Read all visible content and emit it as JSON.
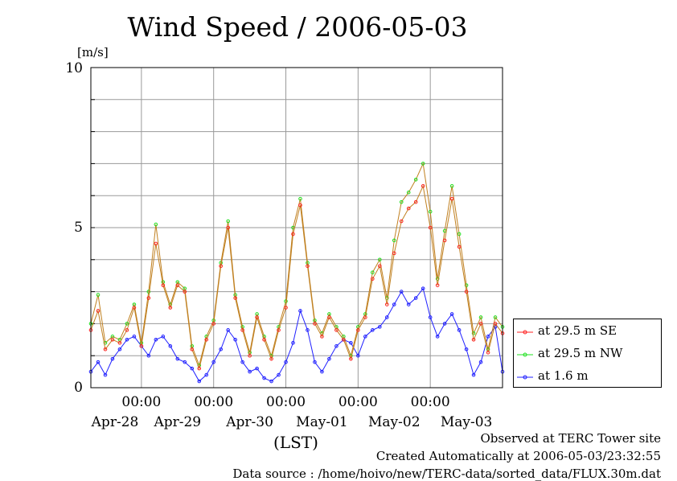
{
  "title": "Wind Speed / 2006-05-03",
  "unit_label": "[m/s]",
  "time_zone_label": "(LST)",
  "footer": {
    "observed": "Observed at TERC Tower site",
    "created": "Created Automatically at 2006-05-03/23:32:55",
    "source": "Data source : /home/hoivo/new/TERC-data/sorted_data/FLUX.30m.dat"
  },
  "colors": {
    "se": "#ff2020",
    "nw": "#20e020",
    "low": "#2020ff",
    "connector": "#c08020"
  },
  "chart_data": {
    "type": "line",
    "title": "Wind Speed / 2006-05-03",
    "ylabel": "[m/s]",
    "xlabel": "(LST)",
    "ylim": [
      0,
      10
    ],
    "y_ticks": [
      "0",
      "5",
      "10"
    ],
    "x_tick_labels": [
      "00:00",
      "00:00",
      "00:00",
      "00:00",
      "00:00"
    ],
    "date_labels": [
      "Apr-28",
      "Apr-29",
      "Apr-30",
      "May-01",
      "May-02",
      "May-03"
    ],
    "grid": true,
    "legend_position": "right-bottom",
    "x_unit": "day index (0 = 2006-04-27 00:00)",
    "x_range": [
      0.3,
      6.0
    ],
    "series": [
      {
        "name": "at 29.5 m SE",
        "color": "#ff2020",
        "x": [
          0.3,
          0.4,
          0.5,
          0.6,
          0.7,
          0.8,
          0.9,
          1.0,
          1.1,
          1.2,
          1.3,
          1.4,
          1.5,
          1.6,
          1.7,
          1.8,
          1.9,
          2.0,
          2.1,
          2.2,
          2.3,
          2.4,
          2.5,
          2.6,
          2.7,
          2.8,
          2.9,
          3.0,
          3.1,
          3.2,
          3.3,
          3.4,
          3.5,
          3.6,
          3.7,
          3.8,
          3.9,
          4.0,
          4.1,
          4.2,
          4.3,
          4.4,
          4.5,
          4.6,
          4.7,
          4.8,
          4.9,
          5.0,
          5.1,
          5.2,
          5.3,
          5.4,
          5.5,
          5.6,
          5.7,
          5.8,
          5.9,
          6.0
        ],
        "y": [
          1.8,
          2.4,
          1.2,
          1.5,
          1.4,
          1.8,
          2.5,
          1.3,
          2.8,
          4.5,
          3.2,
          2.5,
          3.2,
          3.0,
          1.2,
          0.6,
          1.5,
          2.0,
          3.8,
          5.0,
          2.8,
          1.8,
          1.0,
          2.2,
          1.5,
          0.9,
          1.8,
          2.5,
          4.8,
          5.7,
          3.8,
          2.0,
          1.6,
          2.2,
          1.8,
          1.5,
          0.9,
          1.8,
          2.2,
          3.4,
          3.8,
          2.6,
          4.2,
          5.2,
          5.6,
          5.8,
          6.3,
          5.0,
          3.2,
          4.6,
          5.9,
          4.4,
          3.0,
          1.5,
          2.0,
          1.1,
          2.0,
          1.7
        ]
      },
      {
        "name": "at 29.5 m NW",
        "color": "#20e020",
        "x": [
          0.3,
          0.4,
          0.5,
          0.6,
          0.7,
          0.8,
          0.9,
          1.0,
          1.1,
          1.2,
          1.3,
          1.4,
          1.5,
          1.6,
          1.7,
          1.8,
          1.9,
          2.0,
          2.1,
          2.2,
          2.3,
          2.4,
          2.5,
          2.6,
          2.7,
          2.8,
          2.9,
          3.0,
          3.1,
          3.2,
          3.3,
          3.4,
          3.5,
          3.6,
          3.7,
          3.8,
          3.9,
          4.0,
          4.1,
          4.2,
          4.3,
          4.4,
          4.5,
          4.6,
          4.7,
          4.8,
          4.9,
          5.0,
          5.1,
          5.2,
          5.3,
          5.4,
          5.5,
          5.6,
          5.7,
          5.8,
          5.9,
          6.0
        ],
        "y": [
          2.0,
          2.9,
          1.4,
          1.6,
          1.5,
          2.0,
          2.6,
          1.4,
          3.0,
          5.1,
          3.3,
          2.6,
          3.3,
          3.1,
          1.3,
          0.7,
          1.6,
          2.1,
          3.9,
          5.2,
          2.9,
          1.9,
          1.1,
          2.3,
          1.6,
          1.0,
          1.9,
          2.7,
          5.0,
          5.9,
          3.9,
          2.1,
          1.7,
          2.3,
          1.9,
          1.6,
          1.0,
          1.9,
          2.3,
          3.6,
          4.0,
          2.8,
          4.6,
          5.8,
          6.1,
          6.5,
          7.0,
          5.5,
          3.4,
          4.9,
          6.3,
          4.8,
          3.2,
          1.7,
          2.2,
          1.2,
          2.2,
          1.9
        ]
      },
      {
        "name": "at 1.6 m",
        "color": "#2020ff",
        "x": [
          0.3,
          0.4,
          0.5,
          0.6,
          0.7,
          0.8,
          0.9,
          1.0,
          1.1,
          1.2,
          1.3,
          1.4,
          1.5,
          1.6,
          1.7,
          1.8,
          1.9,
          2.0,
          2.1,
          2.2,
          2.3,
          2.4,
          2.5,
          2.6,
          2.7,
          2.8,
          2.9,
          3.0,
          3.1,
          3.2,
          3.3,
          3.4,
          3.5,
          3.6,
          3.7,
          3.8,
          3.9,
          4.0,
          4.1,
          4.2,
          4.3,
          4.4,
          4.5,
          4.6,
          4.7,
          4.8,
          4.9,
          5.0,
          5.1,
          5.2,
          5.3,
          5.4,
          5.5,
          5.6,
          5.7,
          5.8,
          5.9,
          6.0
        ],
        "y": [
          0.5,
          0.8,
          0.4,
          0.9,
          1.2,
          1.5,
          1.6,
          1.3,
          1.0,
          1.5,
          1.6,
          1.3,
          0.9,
          0.8,
          0.6,
          0.2,
          0.4,
          0.8,
          1.2,
          1.8,
          1.5,
          0.8,
          0.5,
          0.6,
          0.3,
          0.2,
          0.4,
          0.8,
          1.4,
          2.4,
          1.8,
          0.8,
          0.5,
          0.9,
          1.3,
          1.5,
          1.4,
          1.0,
          1.6,
          1.8,
          1.9,
          2.2,
          2.6,
          3.0,
          2.6,
          2.8,
          3.1,
          2.2,
          1.6,
          2.0,
          2.3,
          1.8,
          1.2,
          0.4,
          0.8,
          1.6,
          1.9,
          0.5
        ]
      }
    ]
  }
}
